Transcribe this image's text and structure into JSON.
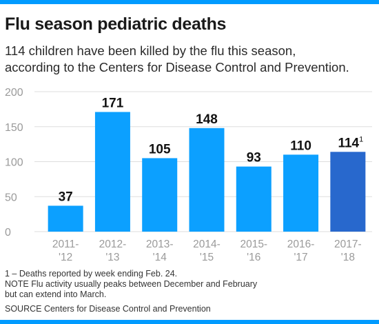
{
  "colors": {
    "accent": "#009bff",
    "bar": "#0ca0ff",
    "bar_highlight": "#2868cd",
    "grid": "#dddddd",
    "tick_text": "#9a9a9a"
  },
  "header": {
    "title": "Flu season pediatric deaths",
    "subtitle_line1": "114 children have been killed by the flu this season,",
    "subtitle_line2": "according to the Centers for Disease Control and Prevention."
  },
  "chart_data": {
    "type": "bar",
    "title": "Flu season pediatric deaths",
    "xlabel": "",
    "ylabel": "",
    "ylim": [
      0,
      200
    ],
    "yticks": [
      0,
      50,
      100,
      150,
      200
    ],
    "grid": true,
    "categories": [
      [
        "2011-",
        "'12"
      ],
      [
        "2012-",
        "'13"
      ],
      [
        "2013-",
        "'14"
      ],
      [
        "2014-",
        "'15"
      ],
      [
        "2015-",
        "'16"
      ],
      [
        "2016-",
        "'17"
      ],
      [
        "2017-",
        "'18"
      ]
    ],
    "values": [
      37,
      171,
      105,
      148,
      93,
      110,
      114
    ],
    "highlight_index": 6,
    "footnote_marker_index": 6,
    "footnote_marker": "1"
  },
  "footer": {
    "note_line1": "1 – Deaths reported by week ending Feb. 24.",
    "note_line2": "NOTE Flu activity usually peaks between December and February",
    "note_line3": "but can extend into March.",
    "source": "SOURCE  Centers for Disease Control and Prevention"
  }
}
